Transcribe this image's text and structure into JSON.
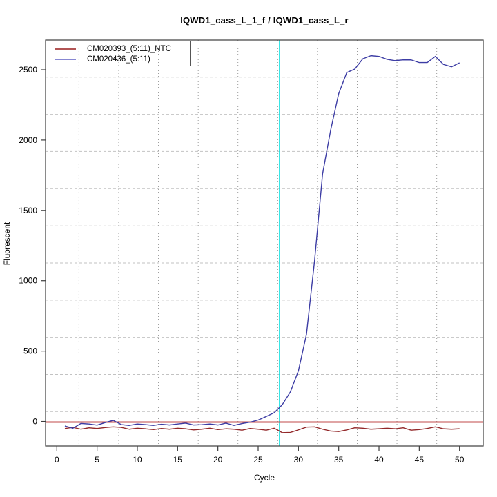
{
  "chart_data": {
    "type": "line",
    "title": "IQWD1_cass_L_1_f / IQWD1_cass_L_r",
    "xlabel": "Cycle",
    "ylabel": "Fluorescent",
    "x_ticks": [
      0,
      5,
      10,
      15,
      20,
      25,
      30,
      35,
      40,
      45,
      50
    ],
    "y_ticks": [
      0,
      500,
      1000,
      1500,
      2000,
      2500
    ],
    "xlim": [
      -1.397,
      52.94
    ],
    "ylim": [
      -174,
      2711
    ],
    "grid": {
      "vertical_dotted_x": [
        2.75,
        7.69,
        12.62,
        17.56,
        22.49,
        27.43,
        32.36,
        37.3,
        42.23,
        47.17
      ],
      "horizontal_dashed_y": [
        70,
        334,
        598,
        862,
        1126,
        1390,
        1655,
        1919,
        2183,
        2447
      ],
      "dotted_color": "#9a9a9a",
      "dashed_color": "#c2c2c2"
    },
    "threshold_line": {
      "y": -5,
      "color": "#c04848"
    },
    "ct_line": {
      "x": 27.65,
      "color": "#00e0e0"
    },
    "cycles": [
      1,
      2,
      3,
      4,
      5,
      6,
      7,
      8,
      9,
      10,
      11,
      12,
      13,
      14,
      15,
      16,
      17,
      18,
      19,
      20,
      21,
      22,
      23,
      24,
      25,
      26,
      27,
      28,
      29,
      30,
      31,
      32,
      33,
      34,
      35,
      36,
      37,
      38,
      39,
      40,
      41,
      42,
      43,
      44,
      45,
      46,
      47,
      48,
      49,
      50
    ],
    "series": [
      {
        "name": "CM020393_(5:11)_NTC",
        "color": "#93282a",
        "legend_color": "#b25454",
        "values": [
          -50,
          -42,
          -55,
          -45,
          -50,
          -43,
          -38,
          -42,
          -55,
          -48,
          -52,
          -58,
          -50,
          -55,
          -48,
          -52,
          -60,
          -55,
          -48,
          -58,
          -52,
          -55,
          -62,
          -50,
          -55,
          -62,
          -48,
          -80,
          -78,
          -60,
          -40,
          -38,
          -55,
          -68,
          -72,
          -60,
          -45,
          -48,
          -55,
          -52,
          -48,
          -52,
          -45,
          -62,
          -58,
          -50,
          -38,
          -52,
          -55,
          -52
        ]
      },
      {
        "name": "CM020436_(5:11)",
        "color": "#3c3ca4",
        "legend_color": "#8787d2",
        "values": [
          -32,
          -48,
          -14,
          -18,
          -26,
          -8,
          8,
          -22,
          -28,
          -18,
          -22,
          -28,
          -20,
          -25,
          -18,
          -12,
          -25,
          -23,
          -18,
          -25,
          -12,
          -28,
          -15,
          -5,
          10,
          35,
          62,
          120,
          210,
          360,
          620,
          1140,
          1760,
          2070,
          2330,
          2480,
          2505,
          2578,
          2600,
          2595,
          2574,
          2565,
          2570,
          2570,
          2551,
          2551,
          2595,
          2538,
          2521,
          2549
        ]
      }
    ],
    "legend_position": "topleft",
    "axis_color": "#3d3d3d",
    "tick_label_color": "#000000"
  }
}
